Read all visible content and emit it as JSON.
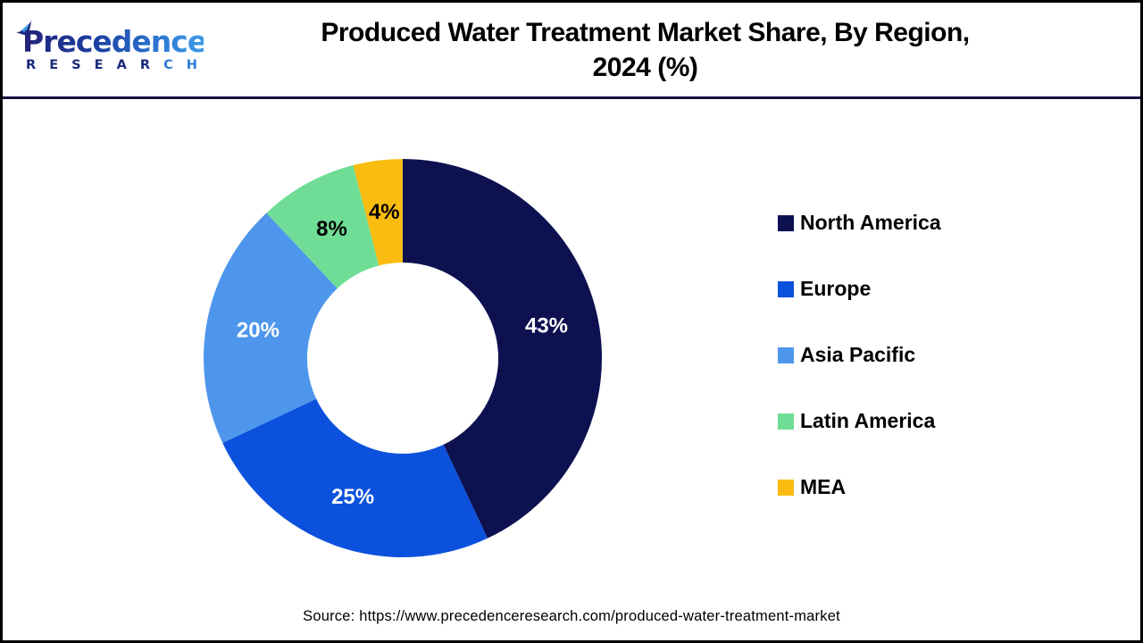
{
  "header": {
    "logo": {
      "brand": "Precedence",
      "research_dark": "R E S E A R ",
      "research_light": "C H"
    },
    "title_line1": "Produced Water Treatment Market Share, By Region,",
    "title_line2": "2024 (%)"
  },
  "chart_data": {
    "type": "pie",
    "donut": true,
    "title": "Produced Water Treatment Market Share, By Region, 2024 (%)",
    "categories": [
      "North America",
      "Europe",
      "Asia Pacific",
      "Latin America",
      "MEA"
    ],
    "values": [
      43,
      25,
      20,
      8,
      4
    ],
    "data_labels": [
      "43%",
      "25%",
      "20%",
      "8%",
      "4%"
    ],
    "unit": "%",
    "colors": [
      "#0d1150",
      "#0b51de",
      "#4e96ec",
      "#6fdd95",
      "#fbbc12"
    ],
    "label_colors": [
      "#ffffff",
      "#ffffff",
      "#ffffff",
      "#000000",
      "#000000"
    ],
    "start_angle_deg": 0,
    "direction": "clockwise",
    "inner_radius_ratio": 0.48,
    "legend_position": "right"
  },
  "footer": {
    "source": "Source: https://www.precedenceresearch.com/produced-water-treatment-market"
  }
}
